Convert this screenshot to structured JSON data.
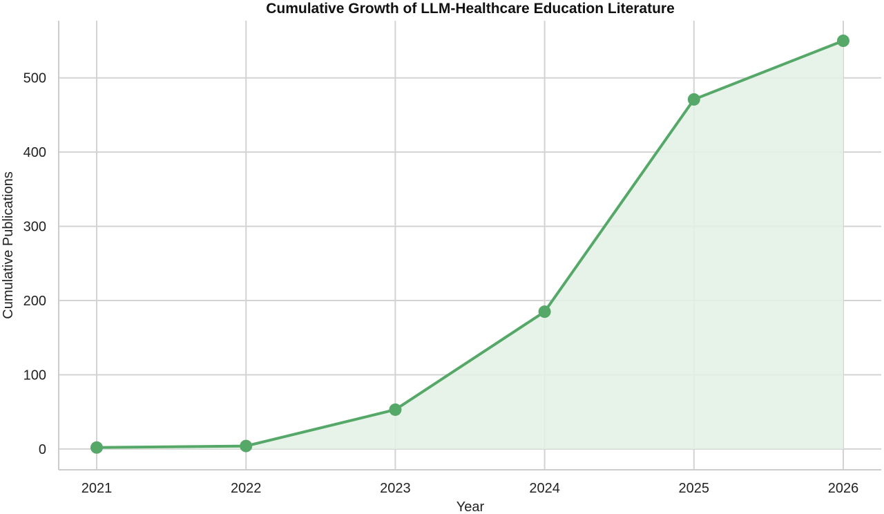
{
  "chart_data": {
    "type": "area",
    "title": "Cumulative Growth of LLM-Healthcare Education Literature",
    "xlabel": "Year",
    "ylabel": "Cumulative Publications",
    "x": [
      "2021",
      "2022",
      "2023",
      "2024",
      "2025",
      "2026"
    ],
    "values": [
      2,
      4,
      53,
      185,
      471,
      550
    ],
    "yticks": [
      0,
      100,
      200,
      300,
      400,
      500
    ],
    "ylim": [
      -28,
      577
    ],
    "grid": true,
    "line_color": "#55a868",
    "fill_color": "#e3f1e5",
    "markers": true
  }
}
